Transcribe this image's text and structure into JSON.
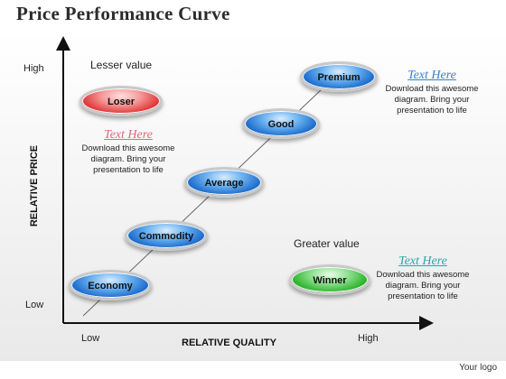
{
  "title": "Price Performance Curve",
  "axes": {
    "y_title": "RELATIVE PRICE",
    "x_title": "RELATIVE QUALITY",
    "y_high": "High",
    "y_low": "Low",
    "x_low": "Low",
    "x_high": "High"
  },
  "headings": {
    "lesser_value": "Lesser value",
    "greater_value": "Greater value"
  },
  "stages": [
    "Economy",
    "Commodity",
    "Average",
    "Good",
    "Premium"
  ],
  "loser_label": "Loser",
  "winner_label": "Winner",
  "text_boxes": [
    {
      "heading": "Text Here",
      "body": "Download this awesome diagram. Bring your presentation to life",
      "color": "#e0687a"
    },
    {
      "heading": "Text Here",
      "body": "Download this awesome diagram. Bring your presentation to life",
      "color": "#3a7fd0"
    },
    {
      "heading": "Text Here",
      "body": "Download this awesome diagram. Bring your presentation to life",
      "color": "#2aa8a8"
    }
  ],
  "footer": "Your logo",
  "colors": {
    "stage_fill": "#1f6fce",
    "loser_fill": "#e23b3b",
    "winner_fill": "#2fb52f"
  }
}
